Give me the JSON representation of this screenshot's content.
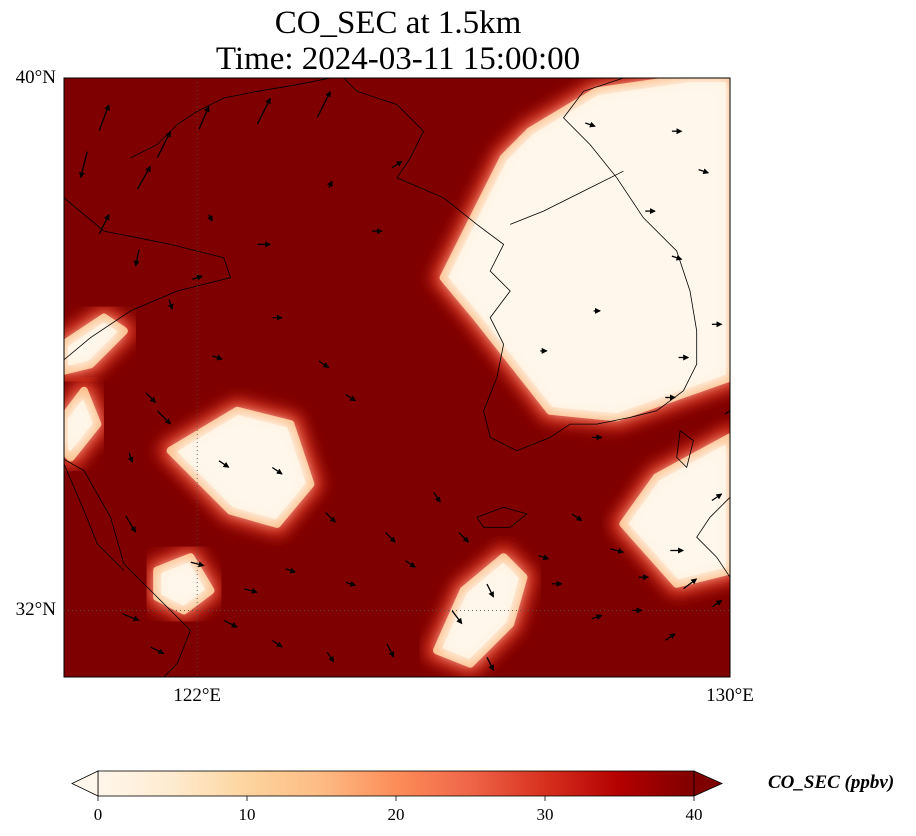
{
  "title_line1": "CO_SEC at 1.5km",
  "title_line2": "Time: 2024-03-11 15:00:00",
  "map": {
    "extent": {
      "lon_min": 120.0,
      "lon_max": 130.0,
      "lat_min": 31.0,
      "lat_max": 40.0
    },
    "gridlines": {
      "lons": [
        122,
        130
      ],
      "lats": [
        32,
        40
      ]
    },
    "lon_tick_labels": [
      {
        "lon": 122,
        "text": "122°E"
      },
      {
        "lon": 130,
        "text": "130°E"
      }
    ],
    "lat_tick_labels": [
      {
        "lat": 32,
        "text": "32°N"
      },
      {
        "lat": 40,
        "text": "40°N"
      }
    ],
    "field": "CO_SEC",
    "field_level": "1.5km",
    "colormap": "OrRd",
    "clean_regions": [
      {
        "name": "korean-peninsula-low-co",
        "polygon": [
          [
            127.0,
            39.2
          ],
          [
            128.0,
            39.8
          ],
          [
            129.4,
            40.0
          ],
          [
            130.0,
            40.0
          ],
          [
            130.0,
            35.5
          ],
          [
            128.3,
            34.9
          ],
          [
            127.3,
            35.0
          ],
          [
            126.2,
            36.4
          ],
          [
            125.7,
            37.0
          ],
          [
            126.2,
            38.0
          ],
          [
            126.6,
            38.8
          ]
        ]
      },
      {
        "name": "east-sea-low-co",
        "polygon": [
          [
            130.0,
            32.6
          ],
          [
            129.2,
            32.4
          ],
          [
            128.4,
            33.3
          ],
          [
            128.9,
            34.0
          ],
          [
            130.0,
            34.6
          ]
        ]
      },
      {
        "name": "yellow-sea-low-co-patch",
        "polygon": [
          [
            121.6,
            34.4
          ],
          [
            122.6,
            35.0
          ],
          [
            123.4,
            34.8
          ],
          [
            123.7,
            33.9
          ],
          [
            123.2,
            33.3
          ],
          [
            122.5,
            33.5
          ]
        ]
      },
      {
        "name": "offshore-low-co-patch",
        "polygon": [
          [
            121.4,
            32.6
          ],
          [
            121.9,
            32.8
          ],
          [
            122.2,
            32.3
          ],
          [
            121.8,
            32.0
          ],
          [
            121.4,
            32.2
          ]
        ]
      },
      {
        "name": "east-china-sea-low-co-tongue",
        "polygon": [
          [
            126.1,
            31.2
          ],
          [
            126.7,
            31.8
          ],
          [
            126.9,
            32.5
          ],
          [
            126.6,
            32.8
          ],
          [
            126.0,
            32.3
          ],
          [
            125.6,
            31.4
          ]
        ]
      },
      {
        "name": "northwest-low-co-patch",
        "polygon": [
          [
            120.0,
            36.0
          ],
          [
            120.6,
            36.4
          ],
          [
            120.9,
            36.2
          ],
          [
            120.4,
            35.7
          ],
          [
            120.0,
            35.6
          ]
        ]
      },
      {
        "name": "west-edge-low-co-patch",
        "polygon": [
          [
            120.0,
            34.9
          ],
          [
            120.3,
            35.3
          ],
          [
            120.5,
            34.8
          ],
          [
            120.1,
            34.3
          ],
          [
            120.0,
            34.4
          ]
        ]
      }
    ],
    "coastlines": [
      {
        "name": "korea-west-south-coast",
        "points": [
          [
            124.2,
            40.0
          ],
          [
            124.4,
            39.8
          ],
          [
            125.0,
            39.6
          ],
          [
            125.4,
            39.2
          ],
          [
            125.2,
            38.8
          ],
          [
            125.0,
            38.5
          ],
          [
            125.7,
            38.2
          ],
          [
            126.2,
            37.8
          ],
          [
            126.6,
            37.5
          ],
          [
            126.4,
            37.1
          ],
          [
            126.7,
            36.8
          ],
          [
            126.4,
            36.4
          ],
          [
            126.6,
            36.0
          ],
          [
            126.5,
            35.5
          ],
          [
            126.3,
            35.0
          ],
          [
            126.4,
            34.6
          ],
          [
            126.8,
            34.4
          ],
          [
            127.3,
            34.6
          ],
          [
            127.6,
            34.8
          ],
          [
            128.0,
            34.8
          ],
          [
            128.5,
            34.9
          ],
          [
            128.9,
            35.0
          ],
          [
            129.3,
            35.3
          ]
        ]
      },
      {
        "name": "korea-east-coast",
        "points": [
          [
            129.3,
            35.3
          ],
          [
            129.5,
            35.7
          ],
          [
            129.5,
            36.2
          ],
          [
            129.4,
            36.8
          ],
          [
            129.2,
            37.4
          ],
          [
            128.7,
            37.9
          ],
          [
            128.3,
            38.5
          ],
          [
            127.9,
            39.0
          ],
          [
            127.5,
            39.4
          ],
          [
            127.8,
            39.8
          ],
          [
            128.4,
            40.0
          ]
        ]
      },
      {
        "name": "dmz-lines",
        "points": [
          [
            126.7,
            37.8
          ],
          [
            127.2,
            38.0
          ],
          [
            127.8,
            38.3
          ],
          [
            128.4,
            38.6
          ]
        ]
      },
      {
        "name": "china-east-coast",
        "points": [
          [
            120.0,
            38.2
          ],
          [
            120.6,
            37.7
          ],
          [
            121.1,
            37.6
          ],
          [
            121.6,
            37.5
          ],
          [
            122.4,
            37.3
          ],
          [
            122.5,
            37.0
          ],
          [
            121.7,
            36.8
          ],
          [
            121.0,
            36.5
          ],
          [
            120.4,
            36.1
          ],
          [
            119.8,
            35.6
          ],
          [
            119.4,
            35.0
          ],
          [
            119.6,
            34.5
          ],
          [
            120.3,
            34.1
          ],
          [
            120.7,
            33.4
          ],
          [
            120.9,
            32.7
          ],
          [
            121.4,
            32.2
          ],
          [
            121.9,
            31.7
          ],
          [
            121.7,
            31.2
          ],
          [
            121.5,
            31.0
          ]
        ]
      },
      {
        "name": "liaodong-coast",
        "points": [
          [
            121.0,
            38.8
          ],
          [
            121.4,
            39.0
          ],
          [
            121.7,
            39.3
          ],
          [
            122.0,
            39.5
          ],
          [
            122.4,
            39.7
          ],
          [
            122.9,
            39.8
          ],
          [
            123.5,
            39.9
          ],
          [
            124.0,
            40.0
          ]
        ]
      },
      {
        "name": "jeju-island",
        "points": [
          [
            126.2,
            33.4
          ],
          [
            126.6,
            33.55
          ],
          [
            126.95,
            33.45
          ],
          [
            126.7,
            33.25
          ],
          [
            126.3,
            33.25
          ],
          [
            126.2,
            33.4
          ]
        ]
      },
      {
        "name": "tsushima-island",
        "points": [
          [
            129.25,
            34.7
          ],
          [
            129.45,
            34.55
          ],
          [
            129.35,
            34.15
          ],
          [
            129.2,
            34.3
          ],
          [
            129.25,
            34.7
          ]
        ]
      },
      {
        "name": "kyushu-coast",
        "points": [
          [
            130.0,
            33.7
          ],
          [
            129.7,
            33.4
          ],
          [
            129.5,
            33.1
          ],
          [
            129.8,
            32.8
          ],
          [
            130.0,
            32.5
          ]
        ]
      },
      {
        "name": "province-boundary",
        "points": [
          [
            120.0,
            34.2
          ],
          [
            120.3,
            33.5
          ],
          [
            120.5,
            33.0
          ],
          [
            120.9,
            32.6
          ]
        ]
      }
    ],
    "wind_vectors": [
      {
        "lon": 120.3,
        "lat": 38.7,
        "u": -2,
        "v": -8
      },
      {
        "lon": 120.6,
        "lat": 39.4,
        "u": 3,
        "v": 8
      },
      {
        "lon": 121.2,
        "lat": 38.5,
        "u": 4,
        "v": 7
      },
      {
        "lon": 121.5,
        "lat": 39.0,
        "u": 4,
        "v": 8
      },
      {
        "lon": 122.1,
        "lat": 39.4,
        "u": 3,
        "v": 7
      },
      {
        "lon": 123.0,
        "lat": 39.5,
        "u": 4,
        "v": 8
      },
      {
        "lon": 123.9,
        "lat": 39.6,
        "u": 4,
        "v": 8
      },
      {
        "lon": 120.6,
        "lat": 37.8,
        "u": 3,
        "v": 6
      },
      {
        "lon": 121.1,
        "lat": 37.3,
        "u": -1,
        "v": -5
      },
      {
        "lon": 122.2,
        "lat": 37.9,
        "u": 1,
        "v": -2
      },
      {
        "lon": 123.0,
        "lat": 37.5,
        "u": 4,
        "v": 0
      },
      {
        "lon": 124.0,
        "lat": 38.4,
        "u": 1,
        "v": 2
      },
      {
        "lon": 124.7,
        "lat": 37.7,
        "u": 3,
        "v": 0
      },
      {
        "lon": 121.6,
        "lat": 36.6,
        "u": 1,
        "v": -3
      },
      {
        "lon": 122.0,
        "lat": 37.0,
        "u": 3,
        "v": 1
      },
      {
        "lon": 123.2,
        "lat": 36.4,
        "u": 3,
        "v": 0
      },
      {
        "lon": 122.3,
        "lat": 35.8,
        "u": 3,
        "v": -1
      },
      {
        "lon": 123.9,
        "lat": 35.7,
        "u": 3,
        "v": -2
      },
      {
        "lon": 124.3,
        "lat": 35.2,
        "u": 3,
        "v": -2
      },
      {
        "lon": 121.3,
        "lat": 35.2,
        "u": 3,
        "v": -3
      },
      {
        "lon": 121.0,
        "lat": 34.3,
        "u": 1,
        "v": -3
      },
      {
        "lon": 121.0,
        "lat": 33.3,
        "u": 3,
        "v": -5
      },
      {
        "lon": 121.5,
        "lat": 34.9,
        "u": 4,
        "v": -4
      },
      {
        "lon": 122.4,
        "lat": 34.2,
        "u": 3,
        "v": -2
      },
      {
        "lon": 123.2,
        "lat": 34.1,
        "u": 3,
        "v": -2
      },
      {
        "lon": 124.0,
        "lat": 33.4,
        "u": 3,
        "v": -3
      },
      {
        "lon": 124.9,
        "lat": 33.1,
        "u": 3,
        "v": -3
      },
      {
        "lon": 125.6,
        "lat": 33.7,
        "u": 2,
        "v": -3
      },
      {
        "lon": 125.2,
        "lat": 32.7,
        "u": 3,
        "v": -2
      },
      {
        "lon": 122.0,
        "lat": 32.7,
        "u": 4,
        "v": -1
      },
      {
        "lon": 122.8,
        "lat": 32.3,
        "u": 4,
        "v": -1
      },
      {
        "lon": 123.4,
        "lat": 32.6,
        "u": 3,
        "v": -1
      },
      {
        "lon": 124.3,
        "lat": 32.4,
        "u": 3,
        "v": -1
      },
      {
        "lon": 121.0,
        "lat": 31.9,
        "u": 5,
        "v": -2
      },
      {
        "lon": 121.4,
        "lat": 31.4,
        "u": 4,
        "v": -2
      },
      {
        "lon": 122.5,
        "lat": 31.8,
        "u": 4,
        "v": -2
      },
      {
        "lon": 123.2,
        "lat": 31.5,
        "u": 3,
        "v": -2
      },
      {
        "lon": 124.0,
        "lat": 31.3,
        "u": 2,
        "v": -3
      },
      {
        "lon": 124.9,
        "lat": 31.4,
        "u": 2,
        "v": -4
      },
      {
        "lon": 125.9,
        "lat": 31.9,
        "u": 3,
        "v": -4
      },
      {
        "lon": 126.4,
        "lat": 31.2,
        "u": 2,
        "v": -4
      },
      {
        "lon": 126.4,
        "lat": 32.3,
        "u": 2,
        "v": -4
      },
      {
        "lon": 127.4,
        "lat": 32.4,
        "u": 3,
        "v": 0
      },
      {
        "lon": 127.2,
        "lat": 32.8,
        "u": 3,
        "v": -1
      },
      {
        "lon": 126.0,
        "lat": 33.1,
        "u": 3,
        "v": -3
      },
      {
        "lon": 127.7,
        "lat": 33.4,
        "u": 3,
        "v": -2
      },
      {
        "lon": 128.3,
        "lat": 32.9,
        "u": 4,
        "v": -1
      },
      {
        "lon": 128.7,
        "lat": 32.5,
        "u": 3,
        "v": 0
      },
      {
        "lon": 129.2,
        "lat": 32.9,
        "u": 4,
        "v": 0
      },
      {
        "lon": 129.4,
        "lat": 32.4,
        "u": 4,
        "v": 3
      },
      {
        "lon": 128.0,
        "lat": 31.9,
        "u": 3,
        "v": 1
      },
      {
        "lon": 128.6,
        "lat": 32.0,
        "u": 3,
        "v": 0
      },
      {
        "lon": 129.1,
        "lat": 31.6,
        "u": 3,
        "v": 2
      },
      {
        "lon": 129.8,
        "lat": 32.1,
        "u": 3,
        "v": 2
      },
      {
        "lon": 129.8,
        "lat": 33.7,
        "u": 3,
        "v": 2
      },
      {
        "lon": 128.0,
        "lat": 34.6,
        "u": 3,
        "v": 0
      },
      {
        "lon": 129.1,
        "lat": 35.2,
        "u": 3,
        "v": 0
      },
      {
        "lon": 129.3,
        "lat": 35.8,
        "u": 3,
        "v": 0
      },
      {
        "lon": 129.8,
        "lat": 36.3,
        "u": 3,
        "v": 0
      },
      {
        "lon": 129.2,
        "lat": 37.3,
        "u": 3,
        "v": -1
      },
      {
        "lon": 129.6,
        "lat": 38.6,
        "u": 3,
        "v": -1
      },
      {
        "lon": 128.8,
        "lat": 38.0,
        "u": 3,
        "v": 0
      },
      {
        "lon": 129.2,
        "lat": 39.2,
        "u": 3,
        "v": 0
      },
      {
        "lon": 127.9,
        "lat": 39.3,
        "u": 3,
        "v": -1
      },
      {
        "lon": 128.0,
        "lat": 36.5,
        "u": 2,
        "v": 0
      },
      {
        "lon": 127.2,
        "lat": 35.9,
        "u": 2,
        "v": 0
      },
      {
        "lon": 130.0,
        "lat": 35.0,
        "u": 3,
        "v": 2
      },
      {
        "lon": 125.0,
        "lat": 38.7,
        "u": 3,
        "v": 2
      }
    ]
  },
  "colorbar": {
    "title": "CO_SEC (ppbv)",
    "min": 0,
    "max": 40,
    "extend": "both",
    "ticks": [
      {
        "value": 0,
        "text": "0"
      },
      {
        "value": 10,
        "text": "10"
      },
      {
        "value": 20,
        "text": "20"
      },
      {
        "value": 30,
        "text": "30"
      },
      {
        "value": 40,
        "text": "40"
      }
    ],
    "stops": [
      {
        "value": 0,
        "color": "#fff7ec"
      },
      {
        "value": 5,
        "color": "#feebcf"
      },
      {
        "value": 10,
        "color": "#fdd49e"
      },
      {
        "value": 15,
        "color": "#fdbb84"
      },
      {
        "value": 20,
        "color": "#fc8d59"
      },
      {
        "value": 25,
        "color": "#ef6548"
      },
      {
        "value": 30,
        "color": "#d7301f"
      },
      {
        "value": 35,
        "color": "#b30000"
      },
      {
        "value": 40,
        "color": "#7f0000"
      }
    ]
  }
}
